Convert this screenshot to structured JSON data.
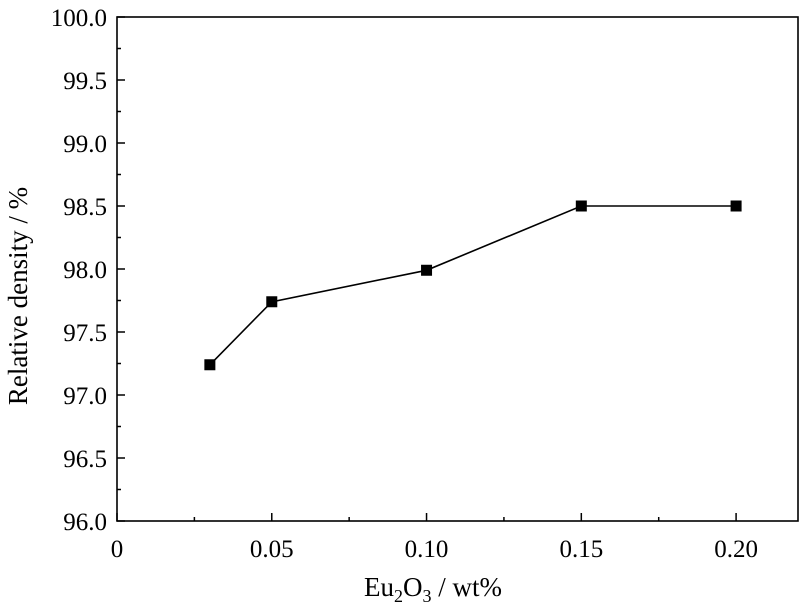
{
  "chart_data": {
    "type": "line",
    "x": [
      0.03,
      0.05,
      0.1,
      0.15,
      0.2
    ],
    "series": [
      {
        "values": [
          97.24,
          97.74,
          97.99,
          98.5,
          98.5
        ]
      }
    ],
    "xlabel": {
      "prefix": "Eu",
      "sub1": "2",
      "mid": "O",
      "sub2": "3",
      "suffix": " / wt%"
    },
    "ylabel": "Relative density / %",
    "xlim": [
      0,
      0.22
    ],
    "ylim": [
      96.0,
      100.0
    ],
    "xticks": [
      {
        "value": 0,
        "label": "0"
      },
      {
        "value": 0.05,
        "label": "0.05"
      },
      {
        "value": 0.1,
        "label": "0.10"
      },
      {
        "value": 0.15,
        "label": "0.15"
      },
      {
        "value": 0.2,
        "label": "0.20"
      }
    ],
    "yticks": [
      {
        "value": 96.0,
        "label": "96.0"
      },
      {
        "value": 96.5,
        "label": "96.5"
      },
      {
        "value": 97.0,
        "label": "97.0"
      },
      {
        "value": 97.5,
        "label": "97.5"
      },
      {
        "value": 98.0,
        "label": "98.0"
      },
      {
        "value": 98.5,
        "label": "98.5"
      },
      {
        "value": 99.0,
        "label": "99.0"
      },
      {
        "value": 99.5,
        "label": "99.5"
      },
      {
        "value": 100.0,
        "label": "100.0"
      }
    ],
    "grid": false,
    "colors": {
      "line": "#000000",
      "marker": "#000000"
    }
  }
}
